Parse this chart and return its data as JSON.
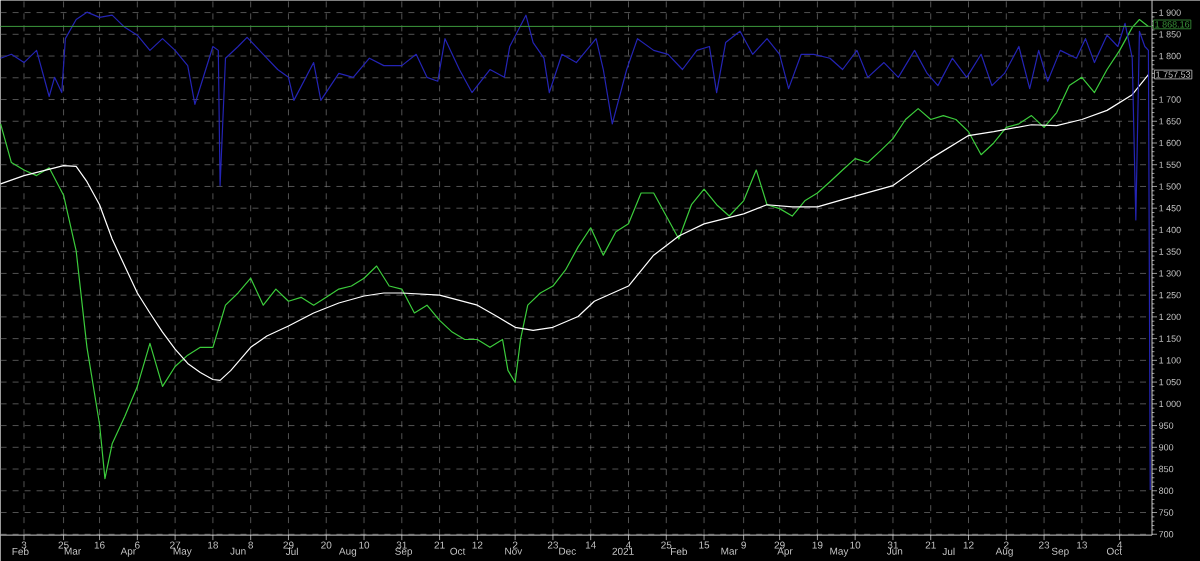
{
  "chart_data": {
    "type": "line",
    "series": [
      {
        "color": "#3ccc3c",
        "x": [
          "2020-01-21",
          "2020-01-27",
          "2020-02-03",
          "2020-02-10",
          "2020-02-17",
          "2020-02-25",
          "2020-03-03",
          "2020-03-09",
          "2020-03-16",
          "2020-03-19",
          "2020-03-23",
          "2020-03-30",
          "2020-04-06",
          "2020-04-13",
          "2020-04-20",
          "2020-04-27",
          "2020-05-04",
          "2020-05-11",
          "2020-05-18",
          "2020-05-25",
          "2020-06-01",
          "2020-06-08",
          "2020-06-15",
          "2020-06-22",
          "2020-06-29",
          "2020-07-06",
          "2020-07-13",
          "2020-07-20",
          "2020-07-27",
          "2020-08-03",
          "2020-08-10",
          "2020-08-17",
          "2020-08-24",
          "2020-08-31",
          "2020-09-07",
          "2020-09-14",
          "2020-09-21",
          "2020-09-28",
          "2020-10-05",
          "2020-10-12",
          "2020-10-19",
          "2020-10-26",
          "2020-10-29",
          "2020-11-02",
          "2020-11-05",
          "2020-11-09",
          "2020-11-16",
          "2020-11-23",
          "2020-11-30",
          "2020-12-07",
          "2020-12-14",
          "2020-12-21",
          "2020-12-28",
          "2021-01-04",
          "2021-01-11",
          "2021-01-18",
          "2021-01-25",
          "2021-02-01",
          "2021-02-08",
          "2021-02-15",
          "2021-02-22",
          "2021-03-01",
          "2021-03-09",
          "2021-03-16",
          "2021-03-22",
          "2021-03-29",
          "2021-04-05",
          "2021-04-12",
          "2021-04-19",
          "2021-04-26",
          "2021-05-03",
          "2021-05-10",
          "2021-05-17",
          "2021-05-24",
          "2021-05-31",
          "2021-06-07",
          "2021-06-14",
          "2021-06-21",
          "2021-06-28",
          "2021-07-05",
          "2021-07-12",
          "2021-07-19",
          "2021-07-26",
          "2021-08-02",
          "2021-08-09",
          "2021-08-16",
          "2021-08-23",
          "2021-08-30",
          "2021-09-06",
          "2021-09-13",
          "2021-09-20",
          "2021-09-27",
          "2021-10-04",
          "2021-10-11",
          "2021-10-15",
          "2021-10-20"
        ],
        "values": [
          1644,
          1555,
          1538,
          1525,
          1543,
          1480,
          1352,
          1130,
          953,
          828,
          908,
          971,
          1040,
          1139,
          1040,
          1086,
          1112,
          1130,
          1130,
          1227,
          1255,
          1289,
          1227,
          1264,
          1236,
          1245,
          1227,
          1245,
          1264,
          1271,
          1289,
          1317,
          1271,
          1264,
          1209,
          1227,
          1192,
          1165,
          1148,
          1148,
          1130,
          1148,
          1077,
          1049,
          1148,
          1227,
          1255,
          1271,
          1308,
          1361,
          1405,
          1342,
          1396,
          1414,
          1485,
          1485,
          1432,
          1379,
          1458,
          1494,
          1458,
          1432,
          1467,
          1538,
          1458,
          1449,
          1432,
          1467,
          1485,
          1511,
          1538,
          1564,
          1555,
          1582,
          1610,
          1654,
          1679,
          1654,
          1663,
          1654,
          1626,
          1573,
          1600,
          1636,
          1644,
          1663,
          1636,
          1670,
          1732,
          1751,
          1716,
          1769,
          1813,
          1866,
          1884,
          1868
        ]
      },
      {
        "color": "#ffffff",
        "x": [
          "2020-01-21",
          "2020-02-03",
          "2020-02-25",
          "2020-03-03",
          "2020-03-09",
          "2020-03-16",
          "2020-03-23",
          "2020-03-30",
          "2020-04-06",
          "2020-04-13",
          "2020-04-20",
          "2020-04-27",
          "2020-05-04",
          "2020-05-11",
          "2020-05-18",
          "2020-05-22",
          "2020-05-28",
          "2020-06-08",
          "2020-06-17",
          "2020-06-29",
          "2020-07-13",
          "2020-07-27",
          "2020-08-10",
          "2020-08-21",
          "2020-08-31",
          "2020-09-21",
          "2020-10-12",
          "2020-10-23",
          "2020-11-02",
          "2020-11-12",
          "2020-11-23",
          "2020-12-07",
          "2020-12-16",
          "2021-01-04",
          "2021-01-18",
          "2021-02-01",
          "2021-02-15",
          "2021-03-09",
          "2021-03-22",
          "2021-04-05",
          "2021-04-19",
          "2021-05-04",
          "2021-05-31",
          "2021-06-21",
          "2021-07-12",
          "2021-07-26",
          "2021-08-16",
          "2021-08-30",
          "2021-09-13",
          "2021-09-27",
          "2021-10-11",
          "2021-10-20"
        ],
        "values": [
          1506,
          1525,
          1548,
          1546,
          1511,
          1458,
          1379,
          1317,
          1255,
          1209,
          1165,
          1126,
          1093,
          1072,
          1056,
          1054,
          1077,
          1130,
          1156,
          1179,
          1209,
          1232,
          1248,
          1255,
          1255,
          1250,
          1227,
          1201,
          1176,
          1169,
          1176,
          1201,
          1236,
          1271,
          1342,
          1386,
          1414,
          1437,
          1458,
          1453,
          1453,
          1471,
          1502,
          1564,
          1617,
          1626,
          1642,
          1640,
          1654,
          1675,
          1711,
          1757.53
        ]
      },
      {
        "color": "#2424b4",
        "x": [
          "2020-01-21",
          "2020-01-27",
          "2020-02-03",
          "2020-02-10",
          "2020-02-17",
          "2020-02-20",
          "2020-02-24",
          "2020-02-26",
          "2020-03-03",
          "2020-03-09",
          "2020-03-16",
          "2020-03-23",
          "2020-03-30",
          "2020-04-06",
          "2020-04-13",
          "2020-04-20",
          "2020-04-27",
          "2020-05-04",
          "2020-05-08",
          "2020-05-18",
          "2020-05-21",
          "2020-05-22",
          "2020-05-25",
          "2020-06-01",
          "2020-06-06",
          "2020-06-15",
          "2020-06-23",
          "2020-06-29",
          "2020-07-02",
          "2020-07-13",
          "2020-07-17",
          "2020-07-27",
          "2020-08-04",
          "2020-08-13",
          "2020-08-21",
          "2020-08-31",
          "2020-09-08",
          "2020-09-14",
          "2020-09-20",
          "2020-09-24",
          "2020-10-02",
          "2020-10-09",
          "2020-10-19",
          "2020-10-27",
          "2020-10-30",
          "2020-11-08",
          "2020-11-12",
          "2020-11-18",
          "2020-11-21",
          "2020-11-28",
          "2020-12-06",
          "2020-12-17",
          "2020-12-21",
          "2020-12-26",
          "2021-01-03",
          "2021-01-09",
          "2021-01-18",
          "2021-01-26",
          "2021-02-03",
          "2021-02-11",
          "2021-02-18",
          "2021-02-22",
          "2021-02-27",
          "2021-03-07",
          "2021-03-14",
          "2021-03-22",
          "2021-03-29",
          "2021-04-03",
          "2021-04-10",
          "2021-04-17",
          "2021-04-26",
          "2021-05-03",
          "2021-05-11",
          "2021-05-17",
          "2021-05-26",
          "2021-06-03",
          "2021-06-12",
          "2021-06-19",
          "2021-06-25",
          "2021-07-03",
          "2021-07-11",
          "2021-07-19",
          "2021-07-25",
          "2021-08-01",
          "2021-08-09",
          "2021-08-15",
          "2021-08-20",
          "2021-08-25",
          "2021-09-01",
          "2021-09-10",
          "2021-09-15",
          "2021-09-20",
          "2021-09-27",
          "2021-10-03",
          "2021-10-07",
          "2021-10-11",
          "2021-10-13",
          "2021-10-15",
          "2021-10-18",
          "2021-10-20",
          "2021-10-21"
        ],
        "values": [
          1795,
          1804,
          1785,
          1813,
          1707,
          1751,
          1716,
          1840,
          1884,
          1901,
          1889,
          1894,
          1866,
          1848,
          1813,
          1840,
          1813,
          1778,
          1689,
          1822,
          1813,
          1502,
          1795,
          1822,
          1843,
          1804,
          1769,
          1751,
          1698,
          1785,
          1698,
          1760,
          1751,
          1795,
          1778,
          1778,
          1804,
          1751,
          1742,
          1840,
          1769,
          1716,
          1769,
          1751,
          1822,
          1894,
          1831,
          1795,
          1716,
          1804,
          1785,
          1840,
          1769,
          1644,
          1769,
          1840,
          1813,
          1804,
          1769,
          1813,
          1822,
          1716,
          1831,
          1857,
          1804,
          1840,
          1804,
          1725,
          1804,
          1804,
          1795,
          1769,
          1813,
          1751,
          1785,
          1751,
          1813,
          1760,
          1732,
          1795,
          1751,
          1804,
          1732,
          1760,
          1822,
          1725,
          1813,
          1742,
          1813,
          1795,
          1840,
          1785,
          1848,
          1822,
          1875,
          1795,
          1423,
          1857,
          1822,
          1813,
          802
        ]
      }
    ],
    "xlim": [
      "2020-01-21",
      "2021-10-22"
    ],
    "xticks": [
      {
        "value": "2020-02-03",
        "label": "3"
      },
      {
        "value": "2020-02-25",
        "label": "25"
      },
      {
        "value": "2020-03-16",
        "label": "16"
      },
      {
        "value": "2020-04-06",
        "label": "6"
      },
      {
        "value": "2020-04-27",
        "label": "27"
      },
      {
        "value": "2020-05-18",
        "label": "18"
      },
      {
        "value": "2020-06-08",
        "label": "8"
      },
      {
        "value": "2020-06-29",
        "label": "29"
      },
      {
        "value": "2020-07-20",
        "label": "20"
      },
      {
        "value": "2020-08-10",
        "label": "10"
      },
      {
        "value": "2020-08-31",
        "label": "31"
      },
      {
        "value": "2020-09-21",
        "label": "21"
      },
      {
        "value": "2020-10-12",
        "label": "12"
      },
      {
        "value": "2020-11-02",
        "label": "2"
      },
      {
        "value": "2020-11-23",
        "label": "23"
      },
      {
        "value": "2020-12-14",
        "label": "14"
      },
      {
        "value": "2021-01-04",
        "label": "4"
      },
      {
        "value": "2021-01-25",
        "label": "25"
      },
      {
        "value": "2021-02-15",
        "label": "15"
      },
      {
        "value": "2021-03-09",
        "label": "9"
      },
      {
        "value": "2021-03-29",
        "label": "29"
      },
      {
        "value": "2021-04-19",
        "label": "19"
      },
      {
        "value": "2021-05-10",
        "label": "10"
      },
      {
        "value": "2021-05-31",
        "label": "31"
      },
      {
        "value": "2021-06-21",
        "label": "21"
      },
      {
        "value": "2021-07-12",
        "label": "12"
      },
      {
        "value": "2021-08-02",
        "label": "2"
      },
      {
        "value": "2021-08-23",
        "label": "23"
      },
      {
        "value": "2021-09-13",
        "label": "13"
      },
      {
        "value": "2021-10-04",
        "label": "4"
      }
    ],
    "x2lim": [
      "2020-01-21",
      "2021-10-22"
    ],
    "x2ticks": [
      {
        "value": "2020-02-01",
        "label": "Feb"
      },
      {
        "value": "2020-03-01",
        "label": "Mar"
      },
      {
        "value": "2020-04-01",
        "label": "Apr"
      },
      {
        "value": "2020-05-01",
        "label": "May"
      },
      {
        "value": "2020-06-01",
        "label": "Jun"
      },
      {
        "value": "2020-07-01",
        "label": "Jul"
      },
      {
        "value": "2020-08-01",
        "label": "Aug"
      },
      {
        "value": "2020-09-01",
        "label": "Sep"
      },
      {
        "value": "2020-10-01",
        "label": "Oct"
      },
      {
        "value": "2020-11-01",
        "label": "Nov"
      },
      {
        "value": "2020-12-01",
        "label": "Dec"
      },
      {
        "value": "2021-01-01",
        "label": "2021"
      },
      {
        "value": "2021-02-01",
        "label": "Feb"
      },
      {
        "value": "2021-03-01",
        "label": "Mar"
      },
      {
        "value": "2021-04-01",
        "label": "Apr"
      },
      {
        "value": "2021-05-01",
        "label": "May"
      },
      {
        "value": "2021-06-01",
        "label": "Jun"
      },
      {
        "value": "2021-07-01",
        "label": "Jul"
      },
      {
        "value": "2021-08-01",
        "label": "Aug"
      },
      {
        "value": "2021-09-01",
        "label": "Sep"
      },
      {
        "value": "2021-10-01",
        "label": "Oct"
      }
    ],
    "ylim": [
      698,
      1928
    ],
    "yticks": [
      700,
      750,
      800,
      850,
      900,
      950,
      {
        "value": 1000,
        "label": "1 000"
      },
      {
        "value": 1050,
        "label": "1 050"
      },
      {
        "value": 1100,
        "label": "1 100"
      },
      {
        "value": 1150,
        "label": "1 150"
      },
      {
        "value": 1200,
        "label": "1 200"
      },
      {
        "value": 1250,
        "label": "1 250"
      },
      {
        "value": 1300,
        "label": "1 300"
      },
      {
        "value": 1350,
        "label": "1 350"
      },
      {
        "value": 1400,
        "label": "1 400"
      },
      {
        "value": 1450,
        "label": "1 450"
      },
      {
        "value": 1500,
        "label": "1 500"
      },
      {
        "value": 1550,
        "label": "1 550"
      },
      {
        "value": 1600,
        "label": "1 600"
      },
      {
        "value": 1650,
        "label": "1 650"
      },
      {
        "value": 1700,
        "label": "1 700"
      },
      {
        "value": 1750,
        "label": null
      },
      {
        "value": 1800,
        "label": "1 800"
      },
      {
        "value": 1850,
        "label": "1 850"
      },
      {
        "value": 1900,
        "label": "1 900"
      }
    ],
    "grid": true,
    "ref_lines": [
      {
        "axis": "y",
        "value": 1868.16,
        "label": "1 868.16",
        "color": "#3c9a3c"
      }
    ],
    "annotations": [
      {
        "text": "1 757.53",
        "x": "2021-10-20",
        "y": 1757.53
      }
    ]
  }
}
